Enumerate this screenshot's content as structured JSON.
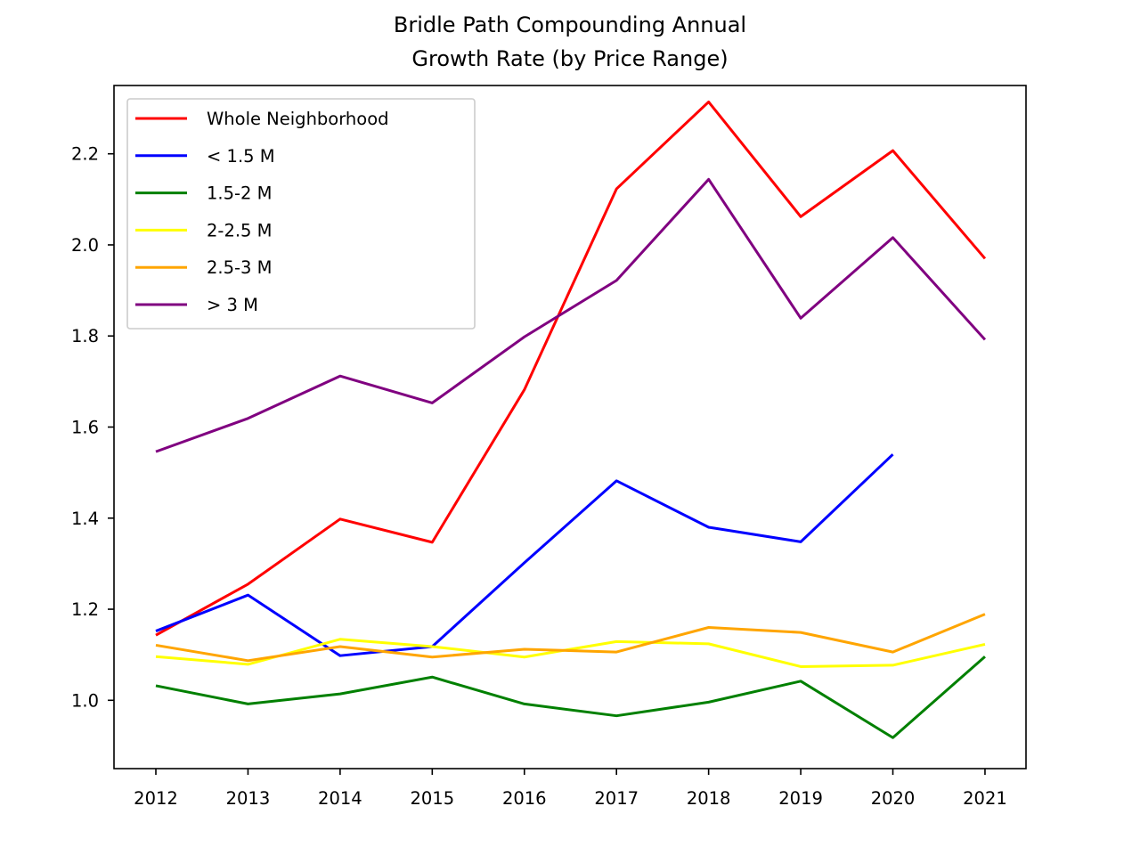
{
  "chart_data": {
    "type": "line",
    "title_lines": [
      "Bridle Path Compounding Annual",
      "Growth Rate (by Price Range)"
    ],
    "xlabel": "",
    "ylabel": "",
    "categories": [
      "2012",
      "2013",
      "2014",
      "2015",
      "2016",
      "2017",
      "2018",
      "2019",
      "2020",
      "2021"
    ],
    "x_tick_labels": [
      "2012",
      "2013",
      "2014",
      "2015",
      "2016",
      "2017",
      "2018",
      "2019",
      "2020",
      "2021"
    ],
    "y_ticks": [
      1.0,
      1.2,
      1.4,
      1.6,
      1.8,
      2.0,
      2.2
    ],
    "y_tick_labels": [
      "1.0",
      "1.2",
      "1.4",
      "1.6",
      "1.8",
      "2.0",
      "2.2"
    ],
    "ylim": [
      0.85,
      2.35
    ],
    "grid": false,
    "legend_position": "upper-left",
    "series": [
      {
        "name": "Whole Neighborhood",
        "color": "#ff0000",
        "values": [
          1.143,
          1.255,
          1.398,
          1.347,
          1.682,
          2.123,
          2.314,
          2.062,
          2.207,
          1.97
        ]
      },
      {
        "name": "< 1.5 M",
        "color": "#0000ff",
        "values": [
          1.152,
          1.231,
          1.098,
          1.118,
          1.302,
          1.482,
          1.38,
          1.348,
          1.54,
          null
        ]
      },
      {
        "name": "1.5-2 M",
        "color": "#008000",
        "values": [
          1.032,
          0.992,
          1.014,
          1.051,
          0.992,
          0.966,
          0.996,
          1.042,
          0.918,
          1.096
        ]
      },
      {
        "name": "2-2.5 M",
        "color": "#ffff00",
        "values": [
          1.096,
          1.079,
          1.134,
          1.118,
          1.095,
          1.129,
          1.124,
          1.074,
          1.077,
          1.123
        ]
      },
      {
        "name": "2.5-3 M",
        "color": "#ffa500",
        "values": [
          1.121,
          1.087,
          1.118,
          1.095,
          1.112,
          1.106,
          1.16,
          1.149,
          1.106,
          1.189
        ]
      },
      {
        "name": "> 3 M",
        "color": "#800080",
        "values": [
          1.546,
          1.619,
          1.712,
          1.653,
          1.798,
          1.922,
          2.144,
          1.839,
          2.016,
          1.792
        ]
      }
    ]
  }
}
